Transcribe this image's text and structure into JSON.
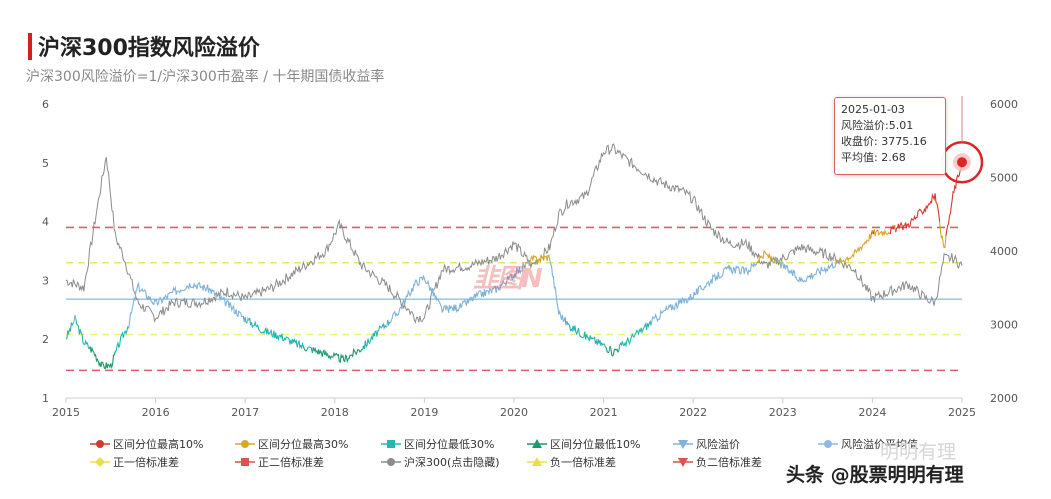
{
  "header": {
    "title": "沪深300指数风险溢价",
    "subtitle": "沪深300风险溢价=1/沪深300市盈率 / 十年期国债收益率"
  },
  "tooltip": {
    "date": "2025-01-03",
    "line1": "风险溢价:5.01",
    "line2": "收盘价: 3775.16",
    "line3": "平均值: 2.68"
  },
  "watermark": {
    "text": "头条 @股票明明有理",
    "ghost_text": "明明有理",
    "center_mark": "韭图N"
  },
  "colors": {
    "top10": "#d03a2f",
    "top30": "#d9a82a",
    "low30": "#26b5b0",
    "low10": "#1e9a6a",
    "premium": "#7fb2d8",
    "avg": "#8fb8e6",
    "plus1sd": "#e8e04a",
    "plus2sd": "#d9534f",
    "index": "#8c8c8c",
    "highlight": "#d92626"
  },
  "chart_data": {
    "type": "line",
    "title": "沪深300指数风险溢价",
    "subtitle": "沪深300风险溢价=1/沪深300市盈率 / 十年期国债收益率",
    "x_tick_labels": [
      "2015",
      "2016",
      "2017",
      "2018",
      "2019",
      "2020",
      "2021",
      "2022",
      "2023",
      "2024",
      "2025"
    ],
    "x_range": [
      2015.0,
      2025.0
    ],
    "y_left": {
      "range": [
        1,
        6
      ],
      "ticks": [
        "1",
        "2",
        "3",
        "4",
        "5",
        "6"
      ]
    },
    "y_right": {
      "range": [
        2000,
        6000
      ],
      "ticks": [
        "2000",
        "3000",
        "4000",
        "5000",
        "6000"
      ]
    },
    "reference_lines": [
      {
        "name": "风险溢价平均值",
        "value": 2.68
      },
      {
        "name": "正一倍标准差",
        "value": 3.3
      },
      {
        "name": "负一倍标准差",
        "value": 2.08
      },
      {
        "name": "正二倍标准差",
        "value": 3.9
      },
      {
        "name": "负二倍标准差",
        "value": 1.47
      }
    ],
    "series": [
      {
        "name": "风险溢价",
        "axis": "left",
        "x": [
          2015.0,
          2015.1,
          2015.2,
          2015.3,
          2015.4,
          2015.5,
          2015.6,
          2015.7,
          2015.8,
          2016.0,
          2016.2,
          2016.4,
          2016.6,
          2016.8,
          2017.0,
          2017.2,
          2017.4,
          2017.6,
          2017.8,
          2018.0,
          2018.1,
          2018.3,
          2018.5,
          2018.7,
          2018.9,
          2019.0,
          2019.2,
          2019.4,
          2019.6,
          2019.8,
          2020.0,
          2020.2,
          2020.4,
          2020.5,
          2020.6,
          2020.8,
          2021.0,
          2021.1,
          2021.3,
          2021.5,
          2021.7,
          2021.9,
          2022.0,
          2022.2,
          2022.4,
          2022.6,
          2022.8,
          2023.0,
          2023.2,
          2023.4,
          2023.6,
          2023.8,
          2024.0,
          2024.2,
          2024.4,
          2024.6,
          2024.7,
          2024.8,
          2024.9,
          2025.0
        ],
        "y": [
          2.02,
          2.35,
          1.95,
          1.8,
          1.55,
          1.55,
          1.95,
          2.25,
          2.9,
          2.6,
          2.8,
          2.95,
          2.85,
          2.6,
          2.35,
          2.15,
          2.05,
          1.9,
          1.8,
          1.7,
          1.65,
          1.85,
          2.15,
          2.45,
          2.95,
          3.05,
          2.5,
          2.55,
          2.75,
          2.85,
          3.1,
          3.35,
          3.4,
          2.45,
          2.25,
          2.05,
          1.9,
          1.78,
          2.0,
          2.25,
          2.5,
          2.65,
          2.75,
          3.0,
          3.2,
          3.15,
          3.45,
          3.25,
          3.0,
          3.15,
          3.3,
          3.45,
          3.8,
          3.85,
          3.95,
          4.25,
          4.45,
          3.5,
          4.45,
          5.01
        ]
      },
      {
        "name": "沪深300(点击隐藏)",
        "axis": "right",
        "x": [
          2015.0,
          2015.2,
          2015.35,
          2015.45,
          2015.55,
          2015.65,
          2015.8,
          2016.0,
          2016.2,
          2016.5,
          2016.8,
          2017.0,
          2017.3,
          2017.6,
          2017.9,
          2018.05,
          2018.3,
          2018.6,
          2018.9,
          2019.0,
          2019.2,
          2019.5,
          2019.8,
          2020.0,
          2020.2,
          2020.4,
          2020.5,
          2020.6,
          2020.8,
          2021.0,
          2021.1,
          2021.3,
          2021.6,
          2021.9,
          2022.0,
          2022.2,
          2022.4,
          2022.6,
          2022.8,
          2023.0,
          2023.2,
          2023.5,
          2023.8,
          2024.0,
          2024.2,
          2024.4,
          2024.6,
          2024.7,
          2024.8,
          2024.9,
          2025.0
        ],
        "y": [
          3600,
          3500,
          4600,
          5300,
          4200,
          3900,
          3300,
          3100,
          3300,
          3300,
          3450,
          3350,
          3500,
          3750,
          4000,
          4350,
          3800,
          3500,
          3100,
          3100,
          3750,
          3800,
          3900,
          4100,
          3800,
          4050,
          4500,
          4650,
          4750,
          5350,
          5400,
          5200,
          4950,
          4800,
          4700,
          4300,
          4100,
          4100,
          3800,
          3900,
          4050,
          3950,
          3750,
          3350,
          3450,
          3550,
          3350,
          3300,
          3900,
          3900,
          3800
        ]
      }
    ],
    "highlight_point": {
      "x": 2025.0,
      "y": 5.01,
      "label_date": "2025-01-03"
    },
    "legend": [
      {
        "name": "区间分位最高10%",
        "marker": "circle",
        "color": "#d03a2f"
      },
      {
        "name": "区间分位最高30%",
        "marker": "circle",
        "color": "#d9a82a"
      },
      {
        "name": "区间分位最低30%",
        "marker": "square",
        "color": "#26b5b0"
      },
      {
        "name": "区间分位最低10%",
        "marker": "triangle",
        "color": "#1e9a6a"
      },
      {
        "name": "风险溢价",
        "marker": "triangle-down",
        "color": "#7fb2d8"
      },
      {
        "name": "风险溢价平均值",
        "marker": "circle",
        "color": "#8fb8e6"
      },
      {
        "name": "正一倍标准差",
        "marker": "diamond",
        "color": "#e8e04a"
      },
      {
        "name": "正二倍标准差",
        "marker": "square",
        "color": "#d9534f"
      },
      {
        "name": "沪深300(点击隐藏)",
        "marker": "circle",
        "color": "#8c8c8c"
      },
      {
        "name": "负一倍标准差",
        "marker": "triangle",
        "color": "#e8e04a"
      },
      {
        "name": "负二倍标准差",
        "marker": "triangle-down",
        "color": "#d9534f"
      }
    ],
    "grid": false,
    "legend_position": "bottom"
  }
}
